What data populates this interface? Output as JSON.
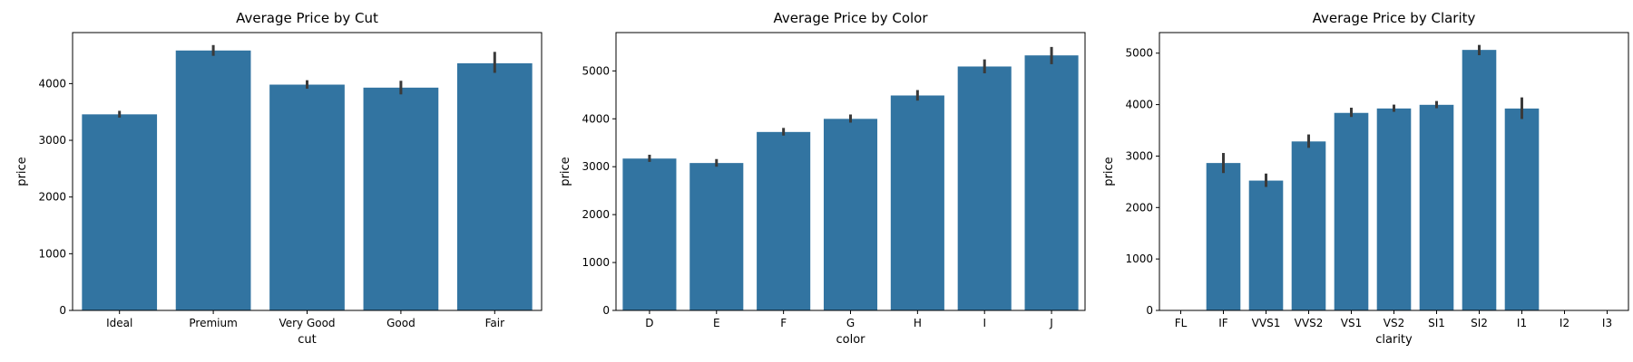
{
  "chart_data": [
    {
      "type": "bar",
      "title": "Average Price by Cut",
      "xlabel": "cut",
      "ylabel": "price",
      "categories": [
        "Ideal",
        "Premium",
        "Very Good",
        "Good",
        "Fair"
      ],
      "values": [
        3458,
        4584,
        3982,
        3929,
        4359
      ],
      "ci_low": [
        3400,
        4490,
        3910,
        3810,
        4190
      ],
      "ci_high": [
        3520,
        4680,
        4060,
        4050,
        4560
      ],
      "ylim": [
        0,
        4900
      ],
      "yticks": [
        0,
        1000,
        2000,
        3000,
        4000
      ],
      "color": "#3274a1",
      "grid": false
    },
    {
      "type": "bar",
      "title": "Average Price by Color",
      "xlabel": "color",
      "ylabel": "price",
      "categories": [
        "D",
        "E",
        "F",
        "G",
        "H",
        "I",
        "J"
      ],
      "values": [
        3170,
        3077,
        3725,
        3999,
        4487,
        5092,
        5324
      ],
      "ci_low": [
        3100,
        3000,
        3650,
        3920,
        4380,
        4950,
        5140
      ],
      "ci_high": [
        3250,
        3160,
        3810,
        4090,
        4600,
        5240,
        5500
      ],
      "ylim": [
        0,
        5800
      ],
      "yticks": [
        0,
        1000,
        2000,
        3000,
        4000,
        5000
      ],
      "color": "#3274a1",
      "grid": false
    },
    {
      "type": "bar",
      "title": "Average Price by Clarity",
      "xlabel": "clarity",
      "ylabel": "price",
      "categories": [
        "FL",
        "IF",
        "VVS1",
        "VVS2",
        "VS1",
        "VS2",
        "SI1",
        "SI2",
        "I1",
        "I2",
        "I3"
      ],
      "values": [
        null,
        2865,
        2523,
        3284,
        3839,
        3925,
        3996,
        5063,
        3924,
        null,
        null
      ],
      "ci_low": [
        null,
        2670,
        2400,
        3160,
        3760,
        3860,
        3930,
        4960,
        3720,
        null,
        null
      ],
      "ci_high": [
        null,
        3060,
        2660,
        3420,
        3940,
        4000,
        4070,
        5160,
        4140,
        null,
        null
      ],
      "ylim": [
        0,
        5400
      ],
      "yticks": [
        0,
        1000,
        2000,
        3000,
        4000,
        5000
      ],
      "color": "#3274a1",
      "grid": false
    }
  ]
}
